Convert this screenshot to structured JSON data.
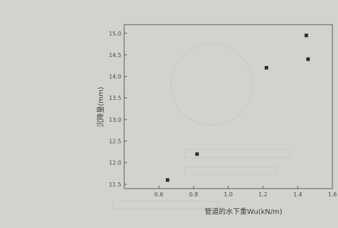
{
  "chart_data": {
    "type": "scatter",
    "title": "",
    "xlabel": "管道的水下重Wu(kN/m)",
    "ylabel": "沉降量(mm)",
    "xlim": [
      0.4,
      1.6
    ],
    "ylim": [
      11.4,
      15.2
    ],
    "x_ticks": [
      "0.6",
      "0.8",
      "1.0",
      "1.2",
      "1.4",
      "1.6"
    ],
    "y_ticks": [
      "11.5",
      "12.0",
      "12.5",
      "13.0",
      "13.5",
      "14.0",
      "14.5",
      "15.0"
    ],
    "grid": false,
    "legend": "none",
    "series": [
      {
        "x": [
          0.65,
          0.82,
          1.22,
          1.45,
          1.46
        ],
        "y": [
          11.6,
          12.2,
          14.2,
          14.95,
          14.4
        ]
      }
    ]
  }
}
